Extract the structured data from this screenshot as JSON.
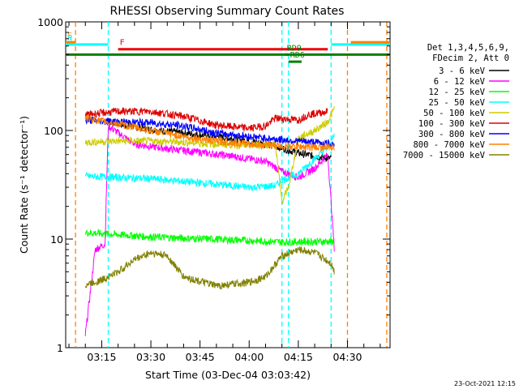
{
  "chart_data": {
    "type": "line",
    "title": "RHESSI Observing Summary Count Rates",
    "xlabel": "Start Time (03-Dec-04 03:03:42)",
    "ylabel": "Count Rate (s⁻¹ detector⁻¹)",
    "y_scale": "log",
    "ylim": [
      1,
      1000
    ],
    "y_ticks": [
      1,
      10,
      100,
      1000
    ],
    "y_tick_labels": [
      "1",
      "10",
      "100",
      "1000"
    ],
    "xlim": [
      "03:04",
      "04:43"
    ],
    "x_tick_labels": [
      "03:15",
      "03:30",
      "03:45",
      "04:00",
      "04:15",
      "04:30"
    ],
    "legend_header": [
      "Det 1,3,4,5,6,9,",
      "FDecim 2, Att 0"
    ],
    "timestamp": "23-Oct-2021 12:15",
    "series": [
      {
        "name": "3 - 6 keV",
        "color": "#000000",
        "points": [
          [
            "03:16",
            125
          ],
          [
            "03:20",
            115
          ],
          [
            "03:30",
            102
          ],
          [
            "03:40",
            95
          ],
          [
            "03:50",
            88
          ],
          [
            "04:00",
            80
          ],
          [
            "04:08",
            72
          ],
          [
            "04:15",
            62
          ],
          [
            "04:20",
            58
          ],
          [
            "04:25",
            55
          ]
        ]
      },
      {
        "name": "6 - 12 keV",
        "color": "#ff00ff",
        "points": [
          [
            "03:10",
            1.3
          ],
          [
            "03:13",
            8
          ],
          [
            "03:16",
            9
          ],
          [
            "03:17",
            110
          ],
          [
            "03:25",
            75
          ],
          [
            "03:35",
            68
          ],
          [
            "03:45",
            63
          ],
          [
            "03:55",
            58
          ],
          [
            "04:05",
            52
          ],
          [
            "04:10",
            42
          ],
          [
            "04:15",
            37
          ],
          [
            "04:20",
            45
          ],
          [
            "04:24",
            60
          ],
          [
            "04:26",
            8
          ]
        ]
      },
      {
        "name": "12 - 25 keV",
        "color": "#00ff00",
        "points": [
          [
            "03:10",
            11.5
          ],
          [
            "03:20",
            11
          ],
          [
            "03:30",
            10.5
          ],
          [
            "03:40",
            10.2
          ],
          [
            "03:50",
            10
          ],
          [
            "04:00",
            9.7
          ],
          [
            "04:10",
            9.4
          ],
          [
            "04:20",
            9.5
          ],
          [
            "04:26",
            9.5
          ]
        ]
      },
      {
        "name": "25 - 50 keV",
        "color": "#00ffff",
        "points": [
          [
            "03:10",
            38
          ],
          [
            "03:20",
            37
          ],
          [
            "03:30",
            36
          ],
          [
            "03:40",
            34
          ],
          [
            "03:50",
            32
          ],
          [
            "04:00",
            30
          ],
          [
            "04:08",
            31
          ],
          [
            "04:10",
            35
          ],
          [
            "04:15",
            40
          ],
          [
            "04:20",
            55
          ],
          [
            "04:24",
            70
          ],
          [
            "04:26",
            90
          ]
        ]
      },
      {
        "name": "50 - 100 keV",
        "color": "#cccc00",
        "points": [
          [
            "03:10",
            78
          ],
          [
            "03:20",
            80
          ],
          [
            "03:30",
            80
          ],
          [
            "03:40",
            78
          ],
          [
            "03:50",
            75
          ],
          [
            "04:00",
            73
          ],
          [
            "04:08",
            75
          ],
          [
            "04:10",
            22
          ],
          [
            "04:12",
            30
          ],
          [
            "04:15",
            85
          ],
          [
            "04:20",
            100
          ],
          [
            "04:24",
            120
          ],
          [
            "04:26",
            160
          ]
        ]
      },
      {
        "name": "100 - 300 keV",
        "color": "#dd0000",
        "points": [
          [
            "03:10",
            140
          ],
          [
            "03:15",
            145
          ],
          [
            "03:20",
            150
          ],
          [
            "03:30",
            150
          ],
          [
            "03:40",
            135
          ],
          [
            "03:50",
            112
          ],
          [
            "04:00",
            105
          ],
          [
            "04:05",
            110
          ],
          [
            "04:08",
            130
          ],
          [
            "04:15",
            125
          ],
          [
            "04:18",
            140
          ],
          [
            "04:24",
            150
          ]
        ]
      },
      {
        "name": "300 - 800 keV",
        "color": "#0000ff",
        "points": [
          [
            "03:10",
            125
          ],
          [
            "03:20",
            120
          ],
          [
            "03:30",
            118
          ],
          [
            "03:40",
            110
          ],
          [
            "03:50",
            95
          ],
          [
            "04:00",
            88
          ],
          [
            "04:10",
            82
          ],
          [
            "04:20",
            78
          ],
          [
            "04:26",
            75
          ]
        ]
      },
      {
        "name": "800 - 7000 keV",
        "color": "#ff8000",
        "points": [
          [
            "03:10",
            130
          ],
          [
            "03:20",
            115
          ],
          [
            "03:30",
            100
          ],
          [
            "03:40",
            88
          ],
          [
            "03:50",
            80
          ],
          [
            "04:00",
            75
          ],
          [
            "04:10",
            72
          ],
          [
            "04:20",
            70
          ],
          [
            "04:26",
            70
          ]
        ]
      },
      {
        "name": "7000 - 15000 keV",
        "color": "#808000",
        "points": [
          [
            "03:10",
            3.8
          ],
          [
            "03:15",
            4.2
          ],
          [
            "03:20",
            5
          ],
          [
            "03:25",
            6.5
          ],
          [
            "03:30",
            7.5
          ],
          [
            "03:35",
            7
          ],
          [
            "03:40",
            4.5
          ],
          [
            "03:50",
            3.7
          ],
          [
            "04:00",
            4
          ],
          [
            "04:05",
            4.5
          ],
          [
            "04:10",
            7
          ],
          [
            "04:15",
            8
          ],
          [
            "04:20",
            7.5
          ],
          [
            "04:25",
            6
          ],
          [
            "04:26",
            5
          ]
        ]
      }
    ],
    "annotations": [
      {
        "label": "S",
        "color": "#ff8000",
        "y": 650,
        "x_start": "03:04",
        "x_end": "03:07"
      },
      {
        "label": "N",
        "color": "#00ffff",
        "y": 620,
        "x_start": "03:04",
        "x_end": "03:17"
      },
      {
        "label": "F",
        "color": "#ee0000",
        "y": 560,
        "x_start": "03:20",
        "x_end": "04:24"
      },
      {
        "label": "",
        "color": "#00ffff",
        "y": 620,
        "x_start": "04:25",
        "x_end": "04:43"
      },
      {
        "label": "",
        "color": "#ff8000",
        "y": 650,
        "x_start": "04:31",
        "x_end": "04:43"
      },
      {
        "label": "",
        "color": "#008000",
        "y": 500,
        "x_start": "03:04",
        "x_end": "04:43"
      },
      {
        "label": "RD9",
        "color": "#008000",
        "y": 500,
        "x_start": "04:11",
        "x_end": "04:12"
      },
      {
        "label": "RD6",
        "color": "#008000",
        "y": 430,
        "x_start": "04:12",
        "x_end": "04:16"
      }
    ],
    "vertical_lines": [
      {
        "color": "#ff8000",
        "time": "03:07"
      },
      {
        "color": "#00ffff",
        "time": "03:17"
      },
      {
        "color": "#00ffff",
        "time": "04:10"
      },
      {
        "color": "#00ffff",
        "time": "04:12"
      },
      {
        "color": "#00ffff",
        "time": "04:25"
      },
      {
        "color": "#ff8000",
        "time": "04:30"
      },
      {
        "color": "#ff8000",
        "time": "04:42"
      }
    ]
  }
}
